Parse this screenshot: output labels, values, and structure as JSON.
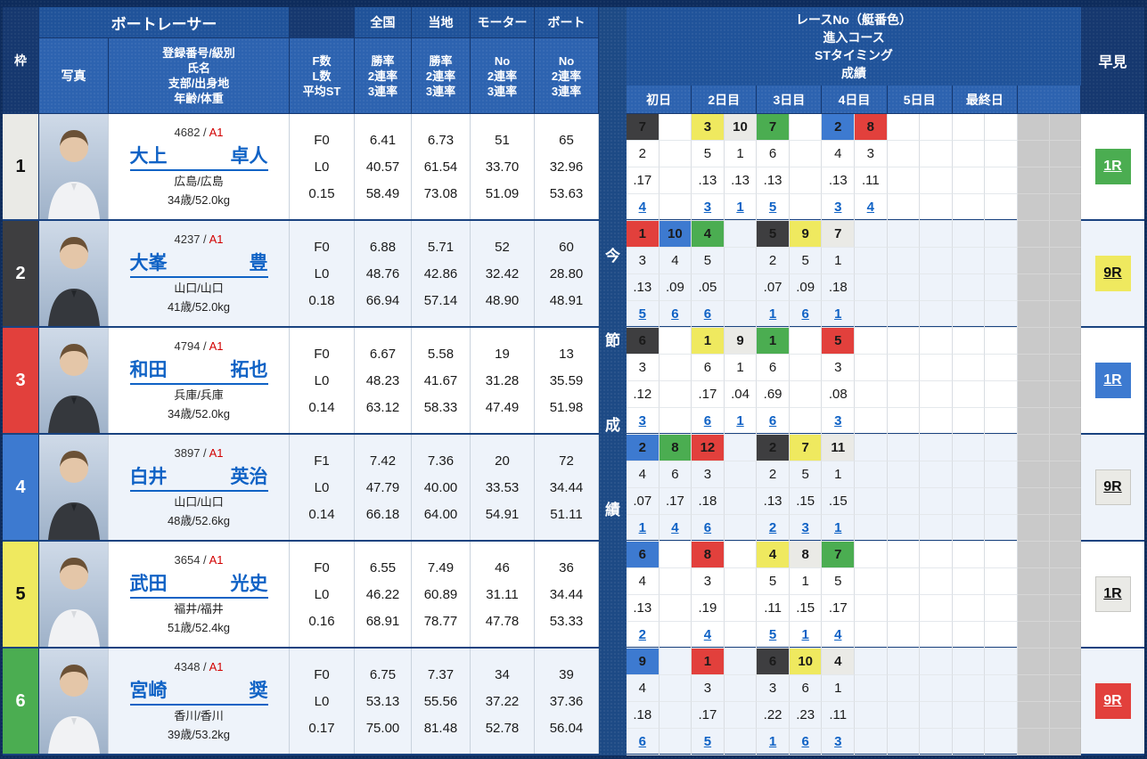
{
  "header": {
    "waku": "枠",
    "racer_group": "ボートレーサー",
    "photo": "写真",
    "info_lines": [
      "登録番号/級別",
      "氏名",
      "支部/出身地",
      "年齢/体重"
    ],
    "fl_lines": [
      "F数",
      "L数",
      "平均ST"
    ],
    "zenkoku": {
      "label": "全国",
      "sub": [
        "勝率",
        "2連率",
        "3連率"
      ]
    },
    "touchi": {
      "label": "当地",
      "sub": [
        "勝率",
        "2連率",
        "3連率"
      ]
    },
    "motor": {
      "label": "モーター",
      "sub": [
        "No",
        "2連率",
        "3連率"
      ]
    },
    "boat": {
      "label": "ボート",
      "sub": [
        "No",
        "2連率",
        "3連率"
      ]
    },
    "race_info_title": [
      "レースNo（艇番色）",
      "進入コース",
      "STタイミング",
      "成績"
    ],
    "days": [
      "初日",
      "2日目",
      "3日目",
      "4日目",
      "5日目",
      "最終日"
    ],
    "hayami": "早見",
    "konsetsu_chars": [
      "今",
      "節",
      "成",
      "績"
    ]
  },
  "boat_colors": {
    "1": "#eaeae6",
    "2": "#3e3e40",
    "3": "#e2403c",
    "4": "#3d7ad0",
    "5": "#efe95f",
    "6": "#4bad51"
  },
  "racers": [
    {
      "frame": 1,
      "reg_no": "4682",
      "klass": "A1",
      "name": [
        "大上",
        "卓人"
      ],
      "branch": "広島/広島",
      "age_weight": "34歳/52.0kg",
      "fl": [
        "F0",
        "L0",
        "0.15"
      ],
      "zenkoku": [
        "6.41",
        "40.57",
        "58.49"
      ],
      "touchi": [
        "6.73",
        "61.54",
        "73.08"
      ],
      "motor": [
        "51",
        "33.70",
        "51.09"
      ],
      "boat": [
        "65",
        "32.96",
        "53.63"
      ],
      "jacket": "white",
      "results": {
        "0": {
          "race": "7",
          "boat": 2,
          "course": "2",
          "st": ".17",
          "fin": "4"
        },
        "2": {
          "race": "3",
          "boat": 5,
          "course": "5",
          "st": ".13",
          "fin": "3"
        },
        "3": {
          "race": "10",
          "boat": 1,
          "course": "1",
          "st": ".13",
          "fin": "1"
        },
        "4": {
          "race": "7",
          "boat": 6,
          "course": "6",
          "st": ".13",
          "fin": "5"
        },
        "6": {
          "race": "2",
          "boat": 4,
          "course": "4",
          "st": ".13",
          "fin": "3"
        },
        "7": {
          "race": "8",
          "boat": 3,
          "course": "3",
          "st": ".11",
          "fin": "4"
        }
      },
      "hayami": {
        "label": "1R",
        "boat": 6
      }
    },
    {
      "frame": 2,
      "reg_no": "4237",
      "klass": "A1",
      "name": [
        "大峯",
        "豊"
      ],
      "branch": "山口/山口",
      "age_weight": "41歳/52.0kg",
      "fl": [
        "F0",
        "L0",
        "0.18"
      ],
      "zenkoku": [
        "6.88",
        "48.76",
        "66.94"
      ],
      "touchi": [
        "5.71",
        "42.86",
        "57.14"
      ],
      "motor": [
        "52",
        "32.42",
        "48.90"
      ],
      "boat": [
        "60",
        "28.80",
        "48.91"
      ],
      "jacket": "dark",
      "results": {
        "0": {
          "race": "1",
          "boat": 3,
          "course": "3",
          "st": ".13",
          "fin": "5"
        },
        "1": {
          "race": "10",
          "boat": 4,
          "course": "4",
          "st": ".09",
          "fin": "6"
        },
        "2": {
          "race": "4",
          "boat": 6,
          "course": "5",
          "st": ".05",
          "fin": "6"
        },
        "4": {
          "race": "5",
          "boat": 2,
          "course": "2",
          "st": ".07",
          "fin": "1"
        },
        "5": {
          "race": "9",
          "boat": 5,
          "course": "5",
          "st": ".09",
          "fin": "6"
        },
        "6": {
          "race": "7",
          "boat": 1,
          "course": "1",
          "st": ".18",
          "fin": "1"
        }
      },
      "hayami": {
        "label": "9R",
        "boat": 5
      }
    },
    {
      "frame": 3,
      "reg_no": "4794",
      "klass": "A1",
      "name": [
        "和田",
        "拓也"
      ],
      "branch": "兵庫/兵庫",
      "age_weight": "34歳/52.0kg",
      "fl": [
        "F0",
        "L0",
        "0.14"
      ],
      "zenkoku": [
        "6.67",
        "48.23",
        "63.12"
      ],
      "touchi": [
        "5.58",
        "41.67",
        "58.33"
      ],
      "motor": [
        "19",
        "31.28",
        "47.49"
      ],
      "boat": [
        "13",
        "35.59",
        "51.98"
      ],
      "jacket": "dark",
      "results": {
        "0": {
          "race": "6",
          "boat": 2,
          "course": "3",
          "st": ".12",
          "fin": "3"
        },
        "2": {
          "race": "1",
          "boat": 5,
          "course": "6",
          "st": ".17",
          "fin": "6"
        },
        "3": {
          "race": "9",
          "boat": 1,
          "course": "1",
          "st": ".04",
          "fin": "1"
        },
        "4": {
          "race": "1",
          "boat": 6,
          "course": "6",
          "st": ".69",
          "fin": "6"
        },
        "6": {
          "race": "5",
          "boat": 3,
          "course": "3",
          "st": ".08",
          "fin": "3"
        }
      },
      "hayami": {
        "label": "1R",
        "boat": 4
      }
    },
    {
      "frame": 4,
      "reg_no": "3897",
      "klass": "A1",
      "name": [
        "白井",
        "英治"
      ],
      "branch": "山口/山口",
      "age_weight": "48歳/52.6kg",
      "fl": [
        "F1",
        "L0",
        "0.14"
      ],
      "zenkoku": [
        "7.42",
        "47.79",
        "66.18"
      ],
      "touchi": [
        "7.36",
        "40.00",
        "64.00"
      ],
      "motor": [
        "20",
        "33.53",
        "54.91"
      ],
      "boat": [
        "72",
        "34.44",
        "51.11"
      ],
      "jacket": "dark",
      "results": {
        "0": {
          "race": "2",
          "boat": 4,
          "course": "4",
          "st": ".07",
          "fin": "1"
        },
        "1": {
          "race": "8",
          "boat": 6,
          "course": "6",
          "st": ".17",
          "fin": "4"
        },
        "2": {
          "race": "12",
          "boat": 3,
          "course": "3",
          "st": ".18",
          "fin": "6"
        },
        "4": {
          "race": "2",
          "boat": 2,
          "course": "2",
          "st": ".13",
          "fin": "2"
        },
        "5": {
          "race": "7",
          "boat": 5,
          "course": "5",
          "st": ".15",
          "fin": "3"
        },
        "6": {
          "race": "11",
          "boat": 1,
          "course": "1",
          "st": ".15",
          "fin": "1"
        }
      },
      "hayami": {
        "label": "9R",
        "boat": 1
      }
    },
    {
      "frame": 5,
      "reg_no": "3654",
      "klass": "A1",
      "name": [
        "武田",
        "光史"
      ],
      "branch": "福井/福井",
      "age_weight": "51歳/52.4kg",
      "fl": [
        "F0",
        "L0",
        "0.16"
      ],
      "zenkoku": [
        "6.55",
        "46.22",
        "68.91"
      ],
      "touchi": [
        "7.49",
        "60.89",
        "78.77"
      ],
      "motor": [
        "46",
        "31.11",
        "47.78"
      ],
      "boat": [
        "36",
        "34.44",
        "53.33"
      ],
      "jacket": "white",
      "results": {
        "0": {
          "race": "6",
          "boat": 4,
          "course": "4",
          "st": ".13",
          "fin": "2"
        },
        "2": {
          "race": "8",
          "boat": 3,
          "course": "3",
          "st": ".19",
          "fin": "4"
        },
        "4": {
          "race": "4",
          "boat": 5,
          "course": "5",
          "st": ".11",
          "fin": "5"
        },
        "5": {
          "race": "8",
          "boat": 1,
          "course": "1",
          "st": ".15",
          "fin": "1"
        },
        "6": {
          "race": "7",
          "boat": 6,
          "course": "5",
          "st": ".17",
          "fin": "4"
        }
      },
      "hayami": {
        "label": "1R",
        "boat": 1
      }
    },
    {
      "frame": 6,
      "reg_no": "4348",
      "klass": "A1",
      "name": [
        "宮崎",
        "奨"
      ],
      "branch": "香川/香川",
      "age_weight": "39歳/53.2kg",
      "fl": [
        "F0",
        "L0",
        "0.17"
      ],
      "zenkoku": [
        "6.75",
        "53.13",
        "75.00"
      ],
      "touchi": [
        "7.37",
        "55.56",
        "81.48"
      ],
      "motor": [
        "34",
        "37.22",
        "52.78"
      ],
      "boat": [
        "39",
        "37.36",
        "56.04"
      ],
      "jacket": "white",
      "results": {
        "0": {
          "race": "9",
          "boat": 4,
          "course": "4",
          "st": ".18",
          "fin": "6"
        },
        "2": {
          "race": "1",
          "boat": 3,
          "course": "3",
          "st": ".17",
          "fin": "5"
        },
        "4": {
          "race": "6",
          "boat": 2,
          "course": "3",
          "st": ".22",
          "fin": "1"
        },
        "5": {
          "race": "10",
          "boat": 5,
          "course": "6",
          "st": ".23",
          "fin": "6"
        },
        "6": {
          "race": "4",
          "boat": 1,
          "course": "1",
          "st": ".11",
          "fin": "3"
        }
      },
      "hayami": {
        "label": "9R",
        "boat": 3
      }
    }
  ]
}
